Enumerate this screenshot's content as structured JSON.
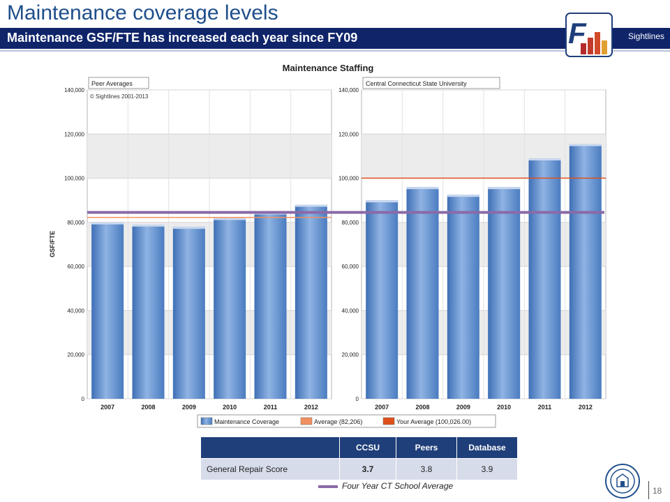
{
  "slide": {
    "title": "Maintenance coverage levels",
    "subtitle": "Maintenance GSF/FTE has increased each year since FY09",
    "logo_letter": "F",
    "logo_brand": "Sightlines",
    "page_number": "18",
    "colors": {
      "title": "#1f4e8c",
      "subtitle_bar": "#0f2469",
      "bar": "#5b88c8",
      "avg_line": "#f39060",
      "your_avg_line": "#e0501c",
      "ct_avg_line": "#8a6aa8"
    }
  },
  "chart_data": {
    "type": "bar",
    "title": "Maintenance Staffing",
    "ylabel": "GSF/FTE",
    "ylim": [
      0,
      140000
    ],
    "yticks": [
      "0",
      "20,000",
      "40,000",
      "60,000",
      "80,000",
      "100,000",
      "120,000",
      "140,000"
    ],
    "categories": [
      "2007",
      "2008",
      "2009",
      "2010",
      "2011",
      "2012"
    ],
    "panels": [
      {
        "name": "Peer Averages",
        "note": "© Sightlines 2001-2013",
        "values": [
          80000,
          79000,
          78000,
          82000,
          84500,
          88000
        ]
      },
      {
        "name": "Central Connecticut State University",
        "note": "",
        "values": [
          90000,
          96000,
          92500,
          96000,
          109000,
          115500
        ]
      }
    ],
    "reference_lines": {
      "average": 82206,
      "your_average": 100026,
      "four_year_ct_average": 84500
    },
    "legend": [
      "Maintenance Coverage",
      "Average (82,206)",
      "Your Average (100,026.00)"
    ]
  },
  "score_table": {
    "headers": [
      "",
      "CCSU",
      "Peers",
      "Database"
    ],
    "row_label": "General Repair Score",
    "values": [
      "3.7",
      "3.8",
      "3.9"
    ]
  },
  "ct_legend_label": "Four Year CT School Average"
}
